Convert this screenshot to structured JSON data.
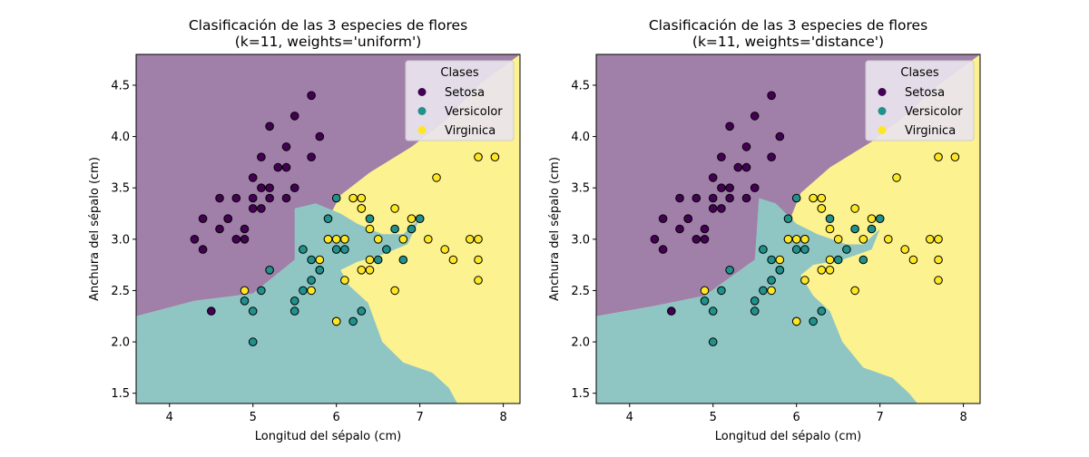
{
  "colors": {
    "setosa": "#440154",
    "versicolor": "#21918c",
    "virginica": "#fde725",
    "setosa_region": "#a07fa9",
    "versicolor_region": "#8fc6c4",
    "virginica_region": "#fcf28f",
    "legend_bg": "#e9e4ee"
  },
  "chart_data": [
    {
      "type": "scatter",
      "title": "Clasificación de las 3 especies de flores\n(k=11, weights='uniform')",
      "xlabel": "Longitud del sépalo (cm)",
      "ylabel": "Anchura del sépalo (cm)",
      "xlim": [
        3.6,
        8.2
      ],
      "ylim": [
        1.4,
        4.8
      ],
      "xticks": [
        "4",
        "5",
        "6",
        "7",
        "8"
      ],
      "yticks": [
        "1.5",
        "2.0",
        "2.5",
        "3.0",
        "3.5",
        "4.0",
        "4.5"
      ],
      "legend": {
        "title": "Clases",
        "entries": [
          "Setosa",
          "Versicolor",
          "Virginica"
        ],
        "placement": "top-right"
      },
      "decision_regions": [
        {
          "class": "Setosa",
          "boundary": [
            [
              3.6,
              2.25
            ],
            [
              4.3,
              2.4
            ],
            [
              5.0,
              2.47
            ],
            [
              5.5,
              2.8
            ],
            [
              5.9,
              3.2
            ],
            [
              6.05,
              3.43
            ],
            [
              6.4,
              3.65
            ],
            [
              6.9,
              3.9
            ],
            [
              7.3,
              4.15
            ],
            [
              7.7,
              4.5
            ],
            [
              8.2,
              4.8
            ]
          ]
        },
        {
          "class": "Versicolor",
          "boundary": [
            [
              5.5,
              3.3
            ],
            [
              5.75,
              3.35
            ],
            [
              6.05,
              3.25
            ],
            [
              6.25,
              3.15
            ],
            [
              6.55,
              3.05
            ],
            [
              6.8,
              3.05
            ],
            [
              7.0,
              3.2
            ],
            [
              6.85,
              2.95
            ],
            [
              6.55,
              2.85
            ],
            [
              6.25,
              2.78
            ],
            [
              6.05,
              2.7
            ],
            [
              6.15,
              2.55
            ],
            [
              6.38,
              2.38
            ],
            [
              6.55,
              2.0
            ],
            [
              6.8,
              1.8
            ],
            [
              7.15,
              1.7
            ],
            [
              7.35,
              1.55
            ],
            [
              7.45,
              1.4
            ]
          ]
        }
      ],
      "series": [
        {
          "name": "Setosa",
          "points": [
            [
              5.1,
              3.5
            ],
            [
              4.9,
              3.0
            ],
            [
              4.7,
              3.2
            ],
            [
              4.6,
              3.1
            ],
            [
              5.0,
              3.6
            ],
            [
              5.4,
              3.9
            ],
            [
              4.6,
              3.4
            ],
            [
              5.0,
              3.4
            ],
            [
              4.4,
              2.9
            ],
            [
              4.9,
              3.1
            ],
            [
              5.4,
              3.7
            ],
            [
              4.8,
              3.4
            ],
            [
              4.8,
              3.0
            ],
            [
              4.3,
              3.0
            ],
            [
              5.8,
              4.0
            ],
            [
              5.7,
              4.4
            ],
            [
              5.1,
              3.8
            ],
            [
              5.7,
              3.8
            ],
            [
              5.2,
              3.5
            ],
            [
              5.2,
              3.4
            ],
            [
              4.7,
              3.2
            ],
            [
              5.4,
              3.4
            ],
            [
              5.2,
              4.1
            ],
            [
              5.5,
              4.2
            ],
            [
              5.5,
              3.5
            ],
            [
              4.5,
              2.3
            ],
            [
              4.4,
              3.2
            ],
            [
              5.1,
              3.3
            ],
            [
              5.3,
              3.7
            ],
            [
              5.0,
              3.3
            ]
          ]
        },
        {
          "name": "Versicolor",
          "points": [
            [
              7.0,
              3.2
            ],
            [
              6.4,
              3.2
            ],
            [
              6.9,
              3.1
            ],
            [
              5.5,
              2.3
            ],
            [
              6.5,
              2.8
            ],
            [
              5.7,
              2.8
            ],
            [
              6.3,
              3.3
            ],
            [
              4.9,
              2.4
            ],
            [
              6.6,
              2.9
            ],
            [
              5.2,
              2.7
            ],
            [
              5.0,
              2.0
            ],
            [
              5.9,
              3.0
            ],
            [
              6.0,
              2.2
            ],
            [
              6.1,
              2.9
            ],
            [
              5.6,
              2.9
            ],
            [
              6.7,
              3.1
            ],
            [
              5.8,
              2.7
            ],
            [
              6.2,
              2.2
            ],
            [
              5.6,
              2.5
            ],
            [
              5.9,
              3.2
            ],
            [
              6.8,
              2.8
            ],
            [
              6.0,
              2.9
            ],
            [
              5.7,
              2.6
            ],
            [
              5.5,
              2.4
            ],
            [
              5.8,
              2.7
            ],
            [
              6.0,
              3.4
            ],
            [
              6.3,
              2.3
            ],
            [
              5.0,
              2.3
            ],
            [
              5.1,
              2.5
            ],
            [
              6.1,
              3.0
            ]
          ]
        },
        {
          "name": "Virginica",
          "points": [
            [
              6.3,
              3.3
            ],
            [
              7.1,
              3.0
            ],
            [
              6.5,
              3.0
            ],
            [
              7.6,
              3.0
            ],
            [
              4.9,
              2.5
            ],
            [
              7.3,
              2.9
            ],
            [
              6.7,
              2.5
            ],
            [
              7.2,
              3.6
            ],
            [
              6.4,
              2.7
            ],
            [
              6.8,
              3.0
            ],
            [
              5.7,
              2.5
            ],
            [
              5.8,
              2.8
            ],
            [
              7.7,
              3.8
            ],
            [
              7.7,
              2.6
            ],
            [
              6.0,
              2.2
            ],
            [
              6.9,
              3.2
            ],
            [
              7.7,
              2.8
            ],
            [
              6.3,
              2.7
            ],
            [
              6.2,
              3.4
            ],
            [
              6.1,
              3.0
            ],
            [
              7.4,
              2.8
            ],
            [
              7.9,
              3.8
            ],
            [
              6.4,
              2.8
            ],
            [
              6.1,
              2.6
            ],
            [
              7.7,
              3.0
            ],
            [
              6.3,
              3.4
            ],
            [
              6.4,
              3.1
            ],
            [
              6.0,
              3.0
            ],
            [
              6.7,
              3.3
            ],
            [
              5.9,
              3.0
            ]
          ]
        }
      ]
    },
    {
      "type": "scatter",
      "title": "Clasificación de las 3 especies de flores\n(k=11, weights='distance')",
      "xlabel": "Longitud del sépalo (cm)",
      "ylabel": "Anchura del sépalo (cm)",
      "xlim": [
        3.6,
        8.2
      ],
      "ylim": [
        1.4,
        4.8
      ],
      "xticks": [
        "4",
        "5",
        "6",
        "7",
        "8"
      ],
      "yticks": [
        "1.5",
        "2.0",
        "2.5",
        "3.0",
        "3.5",
        "4.0",
        "4.5"
      ],
      "legend": {
        "title": "Clases",
        "entries": [
          "Setosa",
          "Versicolor",
          "Virginica"
        ],
        "placement": "top-right"
      },
      "decision_regions": [
        {
          "class": "Setosa",
          "boundary": [
            [
              3.6,
              2.25
            ],
            [
              4.3,
              2.35
            ],
            [
              4.9,
              2.45
            ],
            [
              5.5,
              2.8
            ],
            [
              5.9,
              3.15
            ],
            [
              6.05,
              3.45
            ],
            [
              6.4,
              3.7
            ],
            [
              6.9,
              3.95
            ],
            [
              7.3,
              4.2
            ],
            [
              7.7,
              4.5
            ],
            [
              8.2,
              4.8
            ]
          ]
        },
        {
          "class": "Versicolor",
          "boundary": [
            [
              5.55,
              3.4
            ],
            [
              5.75,
              3.35
            ],
            [
              6.0,
              3.15
            ],
            [
              6.25,
              3.05
            ],
            [
              6.6,
              2.95
            ],
            [
              6.8,
              2.95
            ],
            [
              7.0,
              3.1
            ],
            [
              6.9,
              2.9
            ],
            [
              6.55,
              2.8
            ],
            [
              6.2,
              2.75
            ],
            [
              6.05,
              2.65
            ],
            [
              6.2,
              2.45
            ],
            [
              6.4,
              2.3
            ],
            [
              6.55,
              2.0
            ],
            [
              6.8,
              1.75
            ],
            [
              7.15,
              1.65
            ],
            [
              7.35,
              1.5
            ],
            [
              7.45,
              1.4
            ]
          ]
        }
      ],
      "series": [
        {
          "name": "Setosa",
          "points": [
            [
              5.1,
              3.5
            ],
            [
              4.9,
              3.0
            ],
            [
              4.7,
              3.2
            ],
            [
              4.6,
              3.1
            ],
            [
              5.0,
              3.6
            ],
            [
              5.4,
              3.9
            ],
            [
              4.6,
              3.4
            ],
            [
              5.0,
              3.4
            ],
            [
              4.4,
              2.9
            ],
            [
              4.9,
              3.1
            ],
            [
              5.4,
              3.7
            ],
            [
              4.8,
              3.4
            ],
            [
              4.8,
              3.0
            ],
            [
              4.3,
              3.0
            ],
            [
              5.8,
              4.0
            ],
            [
              5.7,
              4.4
            ],
            [
              5.1,
              3.8
            ],
            [
              5.7,
              3.8
            ],
            [
              5.2,
              3.5
            ],
            [
              5.2,
              3.4
            ],
            [
              4.7,
              3.2
            ],
            [
              5.4,
              3.4
            ],
            [
              5.2,
              4.1
            ],
            [
              5.5,
              4.2
            ],
            [
              5.5,
              3.5
            ],
            [
              4.5,
              2.3
            ],
            [
              4.4,
              3.2
            ],
            [
              5.1,
              3.3
            ],
            [
              5.3,
              3.7
            ],
            [
              5.0,
              3.3
            ]
          ]
        },
        {
          "name": "Versicolor",
          "points": [
            [
              7.0,
              3.2
            ],
            [
              6.4,
              3.2
            ],
            [
              6.9,
              3.1
            ],
            [
              5.5,
              2.3
            ],
            [
              6.5,
              2.8
            ],
            [
              5.7,
              2.8
            ],
            [
              6.3,
              3.3
            ],
            [
              4.9,
              2.4
            ],
            [
              6.6,
              2.9
            ],
            [
              5.2,
              2.7
            ],
            [
              5.0,
              2.0
            ],
            [
              5.9,
              3.0
            ],
            [
              6.0,
              2.2
            ],
            [
              6.1,
              2.9
            ],
            [
              5.6,
              2.9
            ],
            [
              6.7,
              3.1
            ],
            [
              5.8,
              2.7
            ],
            [
              6.2,
              2.2
            ],
            [
              5.6,
              2.5
            ],
            [
              5.9,
              3.2
            ],
            [
              6.8,
              2.8
            ],
            [
              6.0,
              2.9
            ],
            [
              5.7,
              2.6
            ],
            [
              5.5,
              2.4
            ],
            [
              5.8,
              2.7
            ],
            [
              6.0,
              3.4
            ],
            [
              6.3,
              2.3
            ],
            [
              5.0,
              2.3
            ],
            [
              5.1,
              2.5
            ],
            [
              6.1,
              3.0
            ]
          ]
        },
        {
          "name": "Virginica",
          "points": [
            [
              6.3,
              3.3
            ],
            [
              7.1,
              3.0
            ],
            [
              6.5,
              3.0
            ],
            [
              7.6,
              3.0
            ],
            [
              4.9,
              2.5
            ],
            [
              7.3,
              2.9
            ],
            [
              6.7,
              2.5
            ],
            [
              7.2,
              3.6
            ],
            [
              6.4,
              2.7
            ],
            [
              6.8,
              3.0
            ],
            [
              5.7,
              2.5
            ],
            [
              5.8,
              2.8
            ],
            [
              7.7,
              3.8
            ],
            [
              7.7,
              2.6
            ],
            [
              6.0,
              2.2
            ],
            [
              6.9,
              3.2
            ],
            [
              7.7,
              2.8
            ],
            [
              6.3,
              2.7
            ],
            [
              6.2,
              3.4
            ],
            [
              6.1,
              3.0
            ],
            [
              7.4,
              2.8
            ],
            [
              7.9,
              3.8
            ],
            [
              6.4,
              2.8
            ],
            [
              6.1,
              2.6
            ],
            [
              7.7,
              3.0
            ],
            [
              6.3,
              3.4
            ],
            [
              6.4,
              3.1
            ],
            [
              6.0,
              3.0
            ],
            [
              6.7,
              3.3
            ],
            [
              5.9,
              3.0
            ]
          ]
        }
      ]
    }
  ]
}
